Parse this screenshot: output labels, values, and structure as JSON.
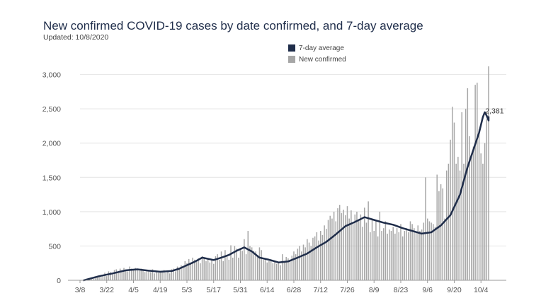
{
  "chart_data": {
    "type": "bar",
    "title": "New confirmed COVID-19 cases by date confirmed, and 7-day average",
    "subtitle": "Updated: 10/8/2020",
    "xlabel": "",
    "ylabel": "",
    "ylim": [
      0,
      3150
    ],
    "yticks": [
      0,
      500,
      1000,
      1500,
      2000,
      2500,
      3000
    ],
    "ytick_labels": [
      "0",
      "500",
      "1,000",
      "1,500",
      "2,000",
      "2,500",
      "3,000"
    ],
    "x_start": "3/8",
    "x_days": 214,
    "xticks": [
      {
        "day": 0,
        "label": "3/8"
      },
      {
        "day": 14,
        "label": "3/22"
      },
      {
        "day": 28,
        "label": "4/5"
      },
      {
        "day": 42,
        "label": "4/19"
      },
      {
        "day": 56,
        "label": "5/3"
      },
      {
        "day": 70,
        "label": "5/17"
      },
      {
        "day": 84,
        "label": "5/31"
      },
      {
        "day": 98,
        "label": "6/14"
      },
      {
        "day": 112,
        "label": "6/28"
      },
      {
        "day": 126,
        "label": "7/12"
      },
      {
        "day": 140,
        "label": "7/26"
      },
      {
        "day": 154,
        "label": "8/9"
      },
      {
        "day": 168,
        "label": "8/23"
      },
      {
        "day": 182,
        "label": "9/6"
      },
      {
        "day": 196,
        "label": "9/20"
      },
      {
        "day": 210,
        "label": "10/4"
      }
    ],
    "grid": true,
    "legend_position": "top",
    "annotation": {
      "text": "2,381",
      "day": 213,
      "value": 2381
    },
    "series": [
      {
        "name": "New confirmed",
        "type": "bar",
        "color": "#a6a6a6",
        "values": [
          10,
          15,
          20,
          30,
          45,
          60,
          50,
          80,
          110,
          60,
          130,
          120,
          90,
          150,
          160,
          120,
          170,
          140,
          180,
          150,
          130,
          200,
          170,
          150,
          180,
          160,
          140,
          170,
          150,
          120,
          130,
          150,
          120,
          160,
          100,
          140,
          110,
          130,
          120,
          150,
          110,
          140,
          100,
          160,
          170,
          130,
          200,
          180,
          220,
          200,
          280,
          250,
          310,
          260,
          330,
          300,
          280,
          320,
          250,
          350,
          330,
          280,
          310,
          260,
          300,
          240,
          350,
          380,
          300,
          420,
          280,
          440,
          350,
          300,
          510,
          330,
          500,
          460,
          330,
          470,
          430,
          600,
          380,
          720,
          500,
          480,
          430,
          420,
          360,
          480,
          440,
          300,
          320,
          260,
          280,
          300,
          250,
          270,
          240,
          260,
          220,
          380,
          280,
          340,
          320,
          300,
          360,
          420,
          380,
          460,
          500,
          420,
          520,
          480,
          600,
          550,
          500,
          620,
          640,
          700,
          580,
          720,
          660,
          800,
          750,
          880,
          940,
          900,
          1000,
          860,
          1050,
          1100,
          980,
          1030,
          950,
          1080,
          900,
          1020,
          820,
          960,
          1000,
          880,
          960,
          780,
          1060,
          840,
          1150,
          700,
          900,
          720,
          880,
          640,
          1000,
          720,
          760,
          860,
          680,
          740,
          720,
          780,
          680,
          760,
          700,
          820,
          640,
          720,
          760,
          700,
          860,
          820,
          760,
          700,
          800,
          720,
          740,
          840,
          1500,
          900,
          860,
          840,
          820,
          780,
          1540,
          1300,
          1400,
          1340,
          900,
          1600,
          1700,
          2050,
          2530,
          2300,
          1700,
          1800,
          1600,
          2450,
          1700,
          2500,
          2800,
          2100,
          1800,
          1950,
          2850,
          2880,
          2200,
          1850,
          1700,
          2000,
          2350,
          3120
        ]
      },
      {
        "name": "7-day average",
        "type": "line",
        "color": "#1f2d4a",
        "points": [
          [
            2,
            0
          ],
          [
            10,
            60
          ],
          [
            17,
            100
          ],
          [
            24,
            145
          ],
          [
            30,
            160
          ],
          [
            36,
            140
          ],
          [
            42,
            125
          ],
          [
            48,
            135
          ],
          [
            52,
            170
          ],
          [
            56,
            220
          ],
          [
            60,
            270
          ],
          [
            64,
            330
          ],
          [
            70,
            295
          ],
          [
            74,
            330
          ],
          [
            78,
            370
          ],
          [
            82,
            430
          ],
          [
            86,
            480
          ],
          [
            90,
            420
          ],
          [
            94,
            330
          ],
          [
            99,
            300
          ],
          [
            104,
            260
          ],
          [
            109,
            275
          ],
          [
            114,
            330
          ],
          [
            119,
            390
          ],
          [
            124,
            480
          ],
          [
            129,
            560
          ],
          [
            134,
            670
          ],
          [
            139,
            790
          ],
          [
            144,
            850
          ],
          [
            149,
            920
          ],
          [
            154,
            880
          ],
          [
            159,
            840
          ],
          [
            164,
            810
          ],
          [
            169,
            760
          ],
          [
            174,
            720
          ],
          [
            179,
            680
          ],
          [
            184,
            700
          ],
          [
            189,
            800
          ],
          [
            194,
            950
          ],
          [
            199,
            1250
          ],
          [
            203,
            1650
          ],
          [
            206,
            1900
          ],
          [
            209,
            2150
          ],
          [
            211,
            2380
          ],
          [
            212,
            2450
          ],
          [
            213,
            2400
          ],
          [
            214,
            2330
          ],
          [
            214,
            2381
          ]
        ]
      }
    ]
  }
}
